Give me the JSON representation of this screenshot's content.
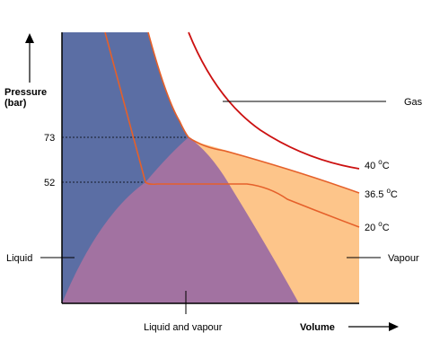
{
  "axes": {
    "y_title_line1": "Pressure",
    "y_title_line2": "(bar)",
    "x_title": "Volume"
  },
  "ticks": {
    "y1": "73",
    "y2": "52"
  },
  "regions": {
    "gas": "Gas",
    "liquid": "Liquid",
    "vapour": "Vapour",
    "liquid_and_vapour": "Liquid and vapour"
  },
  "isotherms": [
    {
      "value": "40 ",
      "unit": "C",
      "degree": "o",
      "color": "#cc1111"
    },
    {
      "value": "36.5 ",
      "unit": "C",
      "degree": "o",
      "color": "#e06a2a"
    },
    {
      "value": "20 ",
      "unit": "C",
      "degree": "o",
      "color": "#e06a2a"
    }
  ],
  "colors": {
    "liquid": "#5b6ea4",
    "liquid_and_vapour": "#a272a1",
    "vapour": "#fdc58a",
    "curve": "#e5602a",
    "hot_curve": "#cc1111"
  }
}
